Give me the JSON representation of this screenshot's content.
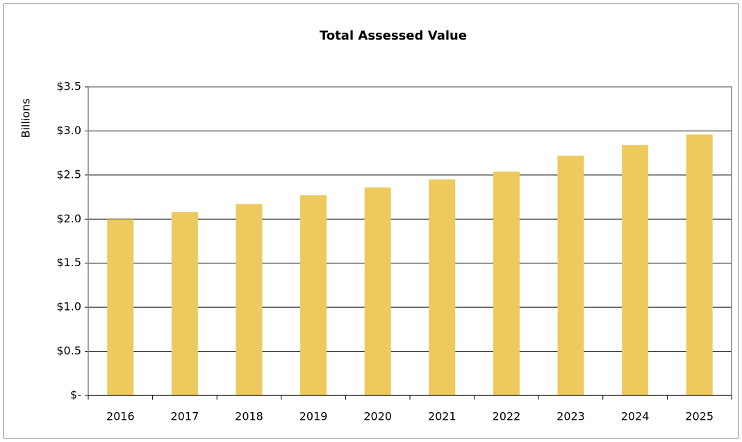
{
  "chart_data": {
    "type": "bar",
    "title": "Total Assessed Value",
    "y_label": "Billions",
    "categories": [
      "2016",
      "2017",
      "2018",
      "2019",
      "2020",
      "2021",
      "2022",
      "2023",
      "2024",
      "2025"
    ],
    "values": [
      2.0,
      2.08,
      2.17,
      2.27,
      2.36,
      2.45,
      2.54,
      2.72,
      2.84,
      2.96
    ],
    "color": "#ecca5e",
    "ylim": [
      0,
      3.5
    ],
    "yticks": [
      {
        "value": 0,
        "label": "$-"
      },
      {
        "value": 0.5,
        "label": "$0.5"
      },
      {
        "value": 1.0,
        "label": "$1.0"
      },
      {
        "value": 1.5,
        "label": "$1.5"
      },
      {
        "value": 2.0,
        "label": "$2.0"
      },
      {
        "value": 2.5,
        "label": "$2.5"
      },
      {
        "value": 3.0,
        "label": "$3.0"
      },
      {
        "value": 3.5,
        "label": "$3.5"
      }
    ],
    "grid": true
  }
}
